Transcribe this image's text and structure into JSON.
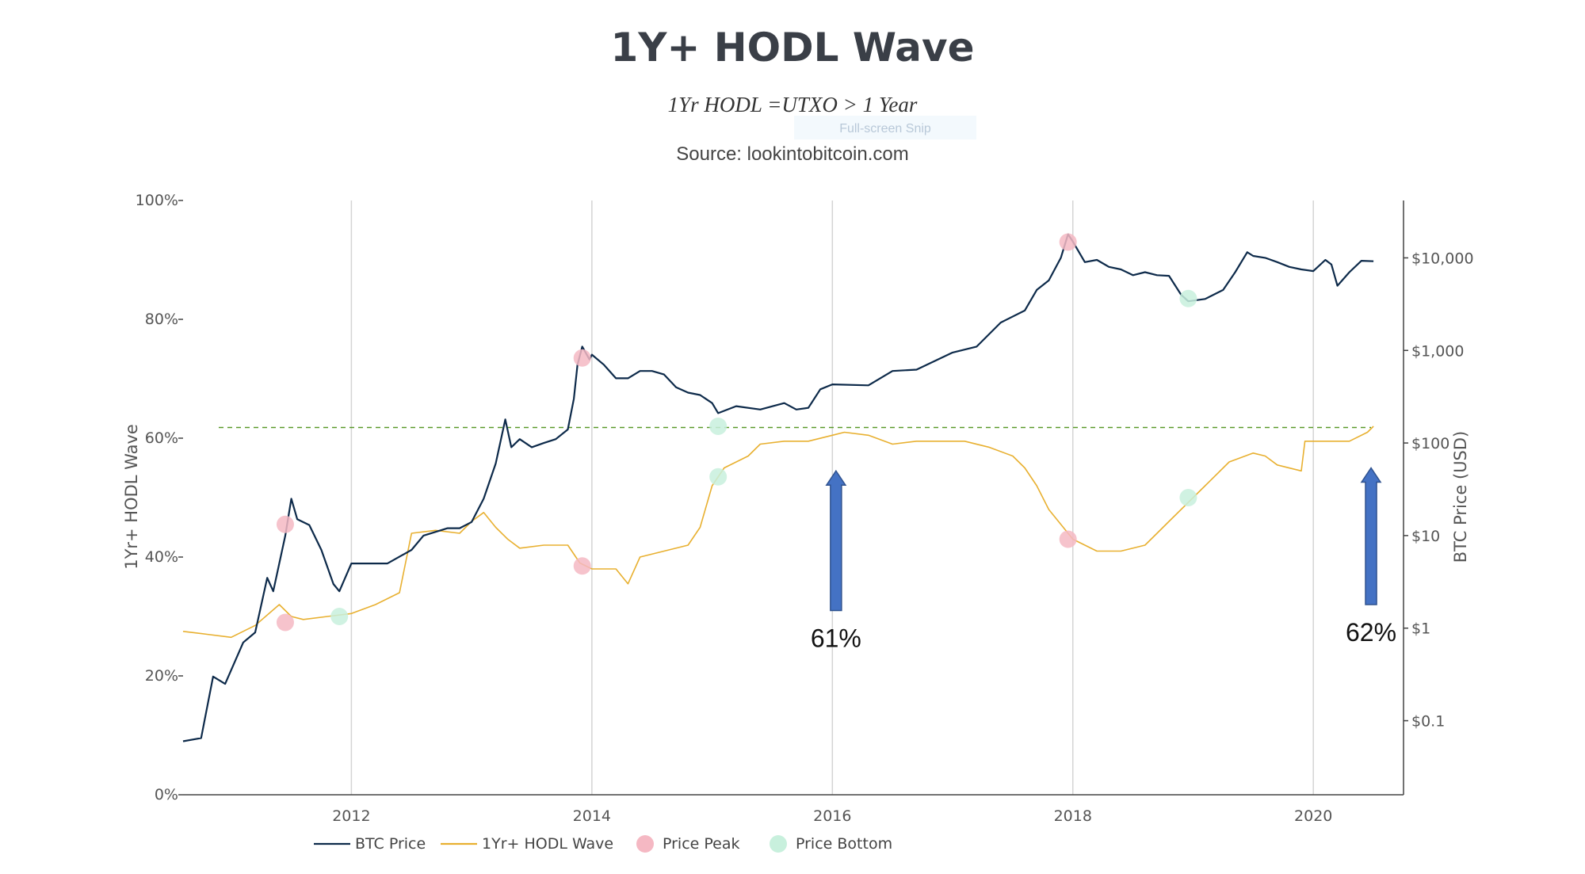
{
  "chart_data": {
    "type": "line",
    "title": "1Y+ HODL Wave",
    "subtitle": "1Yr HODL =UTXO > 1 Year",
    "source": "Source: lookintobitcoin.com",
    "overlay_text": "Full-screen Snip",
    "xlabel": "",
    "ylabel_left": "1Yr+ HODL Wave",
    "ylabel_right": "BTC Price (USD)",
    "x_range": [
      2010.6,
      2020.75
    ],
    "x_ticks": [
      2012,
      2014,
      2016,
      2018,
      2020
    ],
    "y_left_range": [
      0,
      100
    ],
    "y_left_ticks": [
      {
        "value": 0,
        "label": "0%"
      },
      {
        "value": 20,
        "label": "20%"
      },
      {
        "value": 40,
        "label": "40%"
      },
      {
        "value": 60,
        "label": "60%"
      },
      {
        "value": 80,
        "label": "80%"
      },
      {
        "value": 100,
        "label": "100%"
      }
    ],
    "y_right_log_range": [
      -1.8,
      4.62
    ],
    "y_right_ticks": [
      {
        "value": 0.1,
        "label": "$0.1"
      },
      {
        "value": 1,
        "label": "$1"
      },
      {
        "value": 10,
        "label": "$10"
      },
      {
        "value": 100,
        "label": "$100"
      },
      {
        "value": 1000,
        "label": "$1,000"
      },
      {
        "value": 10000,
        "label": "$10,000"
      }
    ],
    "reference_line": {
      "value": 61.8,
      "style": "dashed",
      "color": "#5a9a2a"
    },
    "series": [
      {
        "name": "BTC Price",
        "axis": "right",
        "color": "#0d2a4a",
        "points": [
          [
            2010.6,
            0.06
          ],
          [
            2010.75,
            0.065
          ],
          [
            2010.85,
            0.3
          ],
          [
            2010.95,
            0.25
          ],
          [
            2011.1,
            0.7
          ],
          [
            2011.2,
            0.9
          ],
          [
            2011.3,
            3.5
          ],
          [
            2011.35,
            2.5
          ],
          [
            2011.45,
            10
          ],
          [
            2011.5,
            25
          ],
          [
            2011.55,
            15
          ],
          [
            2011.65,
            13
          ],
          [
            2011.75,
            7
          ],
          [
            2011.85,
            3
          ],
          [
            2011.9,
            2.5
          ],
          [
            2012.0,
            5
          ],
          [
            2012.1,
            5
          ],
          [
            2012.3,
            5
          ],
          [
            2012.5,
            7
          ],
          [
            2012.6,
            10
          ],
          [
            2012.8,
            12
          ],
          [
            2012.9,
            12
          ],
          [
            2013.0,
            14
          ],
          [
            2013.1,
            25
          ],
          [
            2013.2,
            60
          ],
          [
            2013.28,
            180
          ],
          [
            2013.33,
            90
          ],
          [
            2013.4,
            110
          ],
          [
            2013.5,
            90
          ],
          [
            2013.6,
            100
          ],
          [
            2013.7,
            110
          ],
          [
            2013.8,
            140
          ],
          [
            2013.85,
            300
          ],
          [
            2013.88,
            700
          ],
          [
            2013.92,
            1100
          ],
          [
            2013.98,
            800
          ],
          [
            2014.0,
            900
          ],
          [
            2014.1,
            700
          ],
          [
            2014.2,
            500
          ],
          [
            2014.3,
            500
          ],
          [
            2014.4,
            600
          ],
          [
            2014.5,
            600
          ],
          [
            2014.6,
            550
          ],
          [
            2014.7,
            400
          ],
          [
            2014.8,
            350
          ],
          [
            2014.9,
            330
          ],
          [
            2015.0,
            270
          ],
          [
            2015.05,
            210
          ],
          [
            2015.2,
            250
          ],
          [
            2015.4,
            230
          ],
          [
            2015.6,
            270
          ],
          [
            2015.7,
            230
          ],
          [
            2015.8,
            240
          ],
          [
            2015.9,
            380
          ],
          [
            2016.0,
            430
          ],
          [
            2016.3,
            420
          ],
          [
            2016.5,
            600
          ],
          [
            2016.7,
            620
          ],
          [
            2017.0,
            950
          ],
          [
            2017.2,
            1100
          ],
          [
            2017.4,
            2000
          ],
          [
            2017.6,
            2700
          ],
          [
            2017.7,
            4500
          ],
          [
            2017.8,
            5700
          ],
          [
            2017.9,
            10000
          ],
          [
            2017.96,
            18000
          ],
          [
            2018.0,
            15000
          ],
          [
            2018.1,
            9000
          ],
          [
            2018.2,
            9500
          ],
          [
            2018.3,
            8000
          ],
          [
            2018.4,
            7500
          ],
          [
            2018.5,
            6500
          ],
          [
            2018.6,
            7000
          ],
          [
            2018.7,
            6500
          ],
          [
            2018.8,
            6400
          ],
          [
            2018.9,
            4000
          ],
          [
            2018.96,
            3400
          ],
          [
            2019.1,
            3600
          ],
          [
            2019.25,
            4500
          ],
          [
            2019.35,
            7000
          ],
          [
            2019.45,
            11500
          ],
          [
            2019.5,
            10500
          ],
          [
            2019.6,
            10000
          ],
          [
            2019.7,
            9000
          ],
          [
            2019.8,
            8000
          ],
          [
            2019.9,
            7500
          ],
          [
            2020.0,
            7200
          ],
          [
            2020.1,
            9500
          ],
          [
            2020.15,
            8500
          ],
          [
            2020.2,
            5000
          ],
          [
            2020.3,
            7000
          ],
          [
            2020.4,
            9300
          ],
          [
            2020.5,
            9200
          ]
        ]
      },
      {
        "name": "1Yr+ HODL Wave",
        "axis": "left",
        "color": "#e8b030",
        "points": [
          [
            2010.6,
            27.5
          ],
          [
            2010.8,
            27
          ],
          [
            2011.0,
            26.5
          ],
          [
            2011.2,
            28.5
          ],
          [
            2011.4,
            32
          ],
          [
            2011.5,
            30
          ],
          [
            2011.6,
            29.5
          ],
          [
            2011.8,
            30
          ],
          [
            2012.0,
            30.5
          ],
          [
            2012.2,
            32
          ],
          [
            2012.4,
            34
          ],
          [
            2012.5,
            44
          ],
          [
            2012.7,
            44.5
          ],
          [
            2012.9,
            44
          ],
          [
            2013.0,
            46
          ],
          [
            2013.1,
            47.5
          ],
          [
            2013.2,
            45
          ],
          [
            2013.3,
            43
          ],
          [
            2013.4,
            41.5
          ],
          [
            2013.6,
            42
          ],
          [
            2013.8,
            42
          ],
          [
            2013.9,
            39
          ],
          [
            2014.0,
            38
          ],
          [
            2014.2,
            38
          ],
          [
            2014.3,
            35.5
          ],
          [
            2014.4,
            40
          ],
          [
            2014.6,
            41
          ],
          [
            2014.8,
            42
          ],
          [
            2014.9,
            45
          ],
          [
            2015.0,
            52
          ],
          [
            2015.1,
            55
          ],
          [
            2015.3,
            57
          ],
          [
            2015.4,
            59
          ],
          [
            2015.6,
            59.5
          ],
          [
            2015.8,
            59.5
          ],
          [
            2016.0,
            60.5
          ],
          [
            2016.1,
            61
          ],
          [
            2016.3,
            60.5
          ],
          [
            2016.5,
            59
          ],
          [
            2016.7,
            59.5
          ],
          [
            2016.9,
            59.5
          ],
          [
            2017.1,
            59.5
          ],
          [
            2017.3,
            58.5
          ],
          [
            2017.5,
            57
          ],
          [
            2017.6,
            55
          ],
          [
            2017.7,
            52
          ],
          [
            2017.8,
            48
          ],
          [
            2018.0,
            43
          ],
          [
            2018.2,
            41
          ],
          [
            2018.4,
            41
          ],
          [
            2018.6,
            42
          ],
          [
            2018.7,
            44
          ],
          [
            2018.8,
            46
          ],
          [
            2018.95,
            49
          ],
          [
            2019.1,
            52
          ],
          [
            2019.3,
            56
          ],
          [
            2019.5,
            57.5
          ],
          [
            2019.6,
            57
          ],
          [
            2019.7,
            55.5
          ],
          [
            2019.9,
            54.5
          ],
          [
            2019.93,
            59.5
          ],
          [
            2020.1,
            59.5
          ],
          [
            2020.3,
            59.5
          ],
          [
            2020.45,
            61
          ],
          [
            2020.5,
            62
          ]
        ]
      }
    ],
    "markers": [
      {
        "kind": "Price Peak",
        "color": "#f5b8c3",
        "x": 2011.45,
        "axis": "left",
        "y": 45.5
      },
      {
        "kind": "Price Peak",
        "color": "#f5b8c3",
        "x": 2011.45,
        "axis": "left",
        "y": 29
      },
      {
        "kind": "Price Peak",
        "color": "#f5b8c3",
        "x": 2013.92,
        "axis": "left",
        "y": 73.5
      },
      {
        "kind": "Price Peak",
        "color": "#f5b8c3",
        "x": 2013.92,
        "axis": "left",
        "y": 38.5
      },
      {
        "kind": "Price Peak",
        "color": "#f5b8c3",
        "x": 2017.96,
        "axis": "left",
        "y": 93
      },
      {
        "kind": "Price Peak",
        "color": "#f5b8c3",
        "x": 2017.96,
        "axis": "left",
        "y": 43
      },
      {
        "kind": "Price Bottom",
        "color": "#c8f0dd",
        "x": 2011.9,
        "axis": "left",
        "y": 30
      },
      {
        "kind": "Price Bottom",
        "color": "#c8f0dd",
        "x": 2015.05,
        "axis": "left",
        "y": 62
      },
      {
        "kind": "Price Bottom",
        "color": "#c8f0dd",
        "x": 2015.05,
        "axis": "left",
        "y": 53.5
      },
      {
        "kind": "Price Bottom",
        "color": "#c8f0dd",
        "x": 2018.96,
        "axis": "left",
        "y": 83.5
      },
      {
        "kind": "Price Bottom",
        "color": "#c8f0dd",
        "x": 2018.96,
        "axis": "left",
        "y": 50
      }
    ],
    "annotations": [
      {
        "text": "61%",
        "x": 2016.03,
        "arrow_from_y": 31,
        "arrow_to_y": 54.5
      },
      {
        "text": "62%",
        "x": 2020.48,
        "arrow_from_y": 32,
        "arrow_to_y": 55
      }
    ],
    "legend": {
      "position": "bottom",
      "items": [
        {
          "label": "BTC Price",
          "kind": "line",
          "color": "#0d2a4a"
        },
        {
          "label": "1Yr+ HODL Wave",
          "kind": "line",
          "color": "#e8b030"
        },
        {
          "label": "Price Peak",
          "kind": "dot",
          "color": "#f5b8c3"
        },
        {
          "label": "Price Bottom",
          "kind": "dot",
          "color": "#c8f0dd"
        }
      ]
    }
  }
}
